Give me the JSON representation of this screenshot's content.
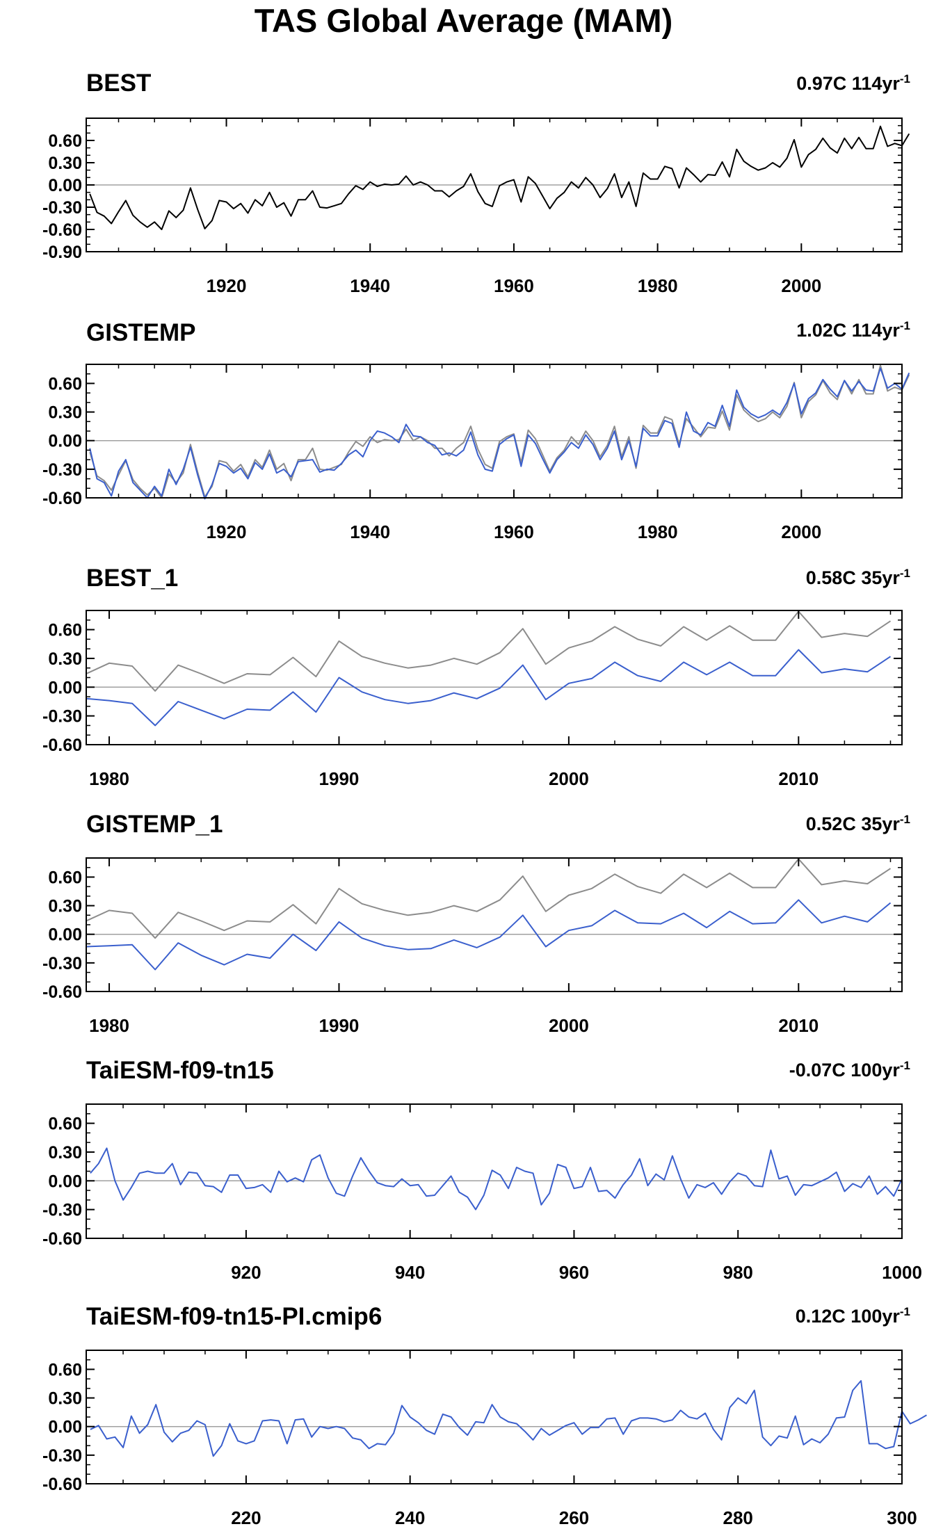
{
  "title": "TAS Global Average (MAM)",
  "colors": {
    "observed": "#000000",
    "reference": "#8c8c8c",
    "model": "#3a5fcd",
    "zero_line": "#a0a0a0"
  },
  "chart_data": [
    {
      "type": "line",
      "title": "BEST",
      "trend_text": "0.97C 114yr",
      "trend_exponent": "-1",
      "ylim": [
        -0.9,
        0.9
      ],
      "yticks": [
        0.6,
        0.3,
        0.0,
        -0.3,
        -0.6,
        -0.9
      ],
      "ytick_labels": [
        "0.60",
        "0.30",
        "0.00",
        "-0.30",
        "-0.60",
        "-0.90"
      ],
      "xlim": [
        1900.5,
        2014
      ],
      "xticks": [
        1920,
        1940,
        1960,
        1980,
        2000
      ],
      "x_start": 1901,
      "series": [
        {
          "color": "observed",
          "values": [
            -0.12,
            -0.37,
            -0.42,
            -0.52,
            -0.36,
            -0.21,
            -0.41,
            -0.5,
            -0.57,
            -0.5,
            -0.6,
            -0.35,
            -0.44,
            -0.34,
            -0.04,
            -0.33,
            -0.59,
            -0.48,
            -0.21,
            -0.23,
            -0.32,
            -0.25,
            -0.38,
            -0.2,
            -0.28,
            -0.1,
            -0.3,
            -0.24,
            -0.42,
            -0.2,
            -0.2,
            -0.08,
            -0.3,
            -0.31,
            -0.28,
            -0.25,
            -0.12,
            -0.01,
            -0.06,
            0.04,
            -0.02,
            0.01,
            0.0,
            0.01,
            0.12,
            0.0,
            0.04,
            0.0,
            -0.08,
            -0.08,
            -0.16,
            -0.08,
            -0.02,
            0.15,
            -0.09,
            -0.25,
            -0.29,
            -0.01,
            0.04,
            0.07,
            -0.23,
            0.11,
            0.02,
            -0.15,
            -0.32,
            -0.18,
            -0.1,
            0.04,
            -0.04,
            0.1,
            0.0,
            -0.17,
            -0.05,
            0.15,
            -0.17,
            0.04,
            -0.29,
            0.16,
            0.08,
            0.08,
            0.25,
            0.22,
            -0.04,
            0.23,
            0.14,
            0.04,
            0.14,
            0.13,
            0.31,
            0.11,
            0.48,
            0.32,
            0.25,
            0.2,
            0.23,
            0.3,
            0.24,
            0.36,
            0.61,
            0.24,
            0.41,
            0.48,
            0.63,
            0.5,
            0.43,
            0.63,
            0.49,
            0.64,
            0.49,
            0.49,
            0.79,
            0.52,
            0.56,
            0.53,
            0.69
          ]
        }
      ]
    },
    {
      "type": "line",
      "title": "GISTEMP",
      "trend_text": "1.02C 114yr",
      "trend_exponent": "-1",
      "ylim": [
        -0.6,
        0.8
      ],
      "yticks": [
        0.6,
        0.3,
        0.0,
        -0.3,
        -0.6
      ],
      "ytick_labels": [
        "0.60",
        "0.30",
        "0.00",
        "-0.30",
        "-0.60"
      ],
      "xlim": [
        1900.5,
        2014
      ],
      "xticks": [
        1920,
        1940,
        1960,
        1980,
        2000
      ],
      "x_start": 1901,
      "series": [
        {
          "color": "reference",
          "values": [
            -0.12,
            -0.37,
            -0.42,
            -0.52,
            -0.36,
            -0.21,
            -0.41,
            -0.5,
            -0.57,
            -0.5,
            -0.6,
            -0.35,
            -0.44,
            -0.34,
            -0.04,
            -0.33,
            -0.59,
            -0.48,
            -0.21,
            -0.23,
            -0.32,
            -0.25,
            -0.38,
            -0.2,
            -0.28,
            -0.1,
            -0.3,
            -0.24,
            -0.42,
            -0.2,
            -0.2,
            -0.08,
            -0.3,
            -0.31,
            -0.28,
            -0.25,
            -0.12,
            -0.01,
            -0.06,
            0.04,
            -0.02,
            0.01,
            0.0,
            0.01,
            0.12,
            0.0,
            0.04,
            0.0,
            -0.08,
            -0.08,
            -0.16,
            -0.08,
            -0.02,
            0.15,
            -0.09,
            -0.25,
            -0.29,
            -0.01,
            0.04,
            0.07,
            -0.23,
            0.11,
            0.02,
            -0.15,
            -0.32,
            -0.18,
            -0.1,
            0.04,
            -0.04,
            0.1,
            0.0,
            -0.17,
            -0.05,
            0.15,
            -0.17,
            0.04,
            -0.29,
            0.16,
            0.08,
            0.08,
            0.25,
            0.22,
            -0.04,
            0.23,
            0.14,
            0.04,
            0.14,
            0.13,
            0.31,
            0.11,
            0.48,
            0.32,
            0.25,
            0.2,
            0.23,
            0.3,
            0.24,
            0.36,
            0.61,
            0.24,
            0.41,
            0.48,
            0.63,
            0.5,
            0.43,
            0.63,
            0.49,
            0.64,
            0.49,
            0.49,
            0.79,
            0.52,
            0.56,
            0.53,
            0.69
          ]
        },
        {
          "color": "model",
          "values": [
            -0.08,
            -0.4,
            -0.44,
            -0.58,
            -0.32,
            -0.2,
            -0.44,
            -0.52,
            -0.6,
            -0.48,
            -0.58,
            -0.3,
            -0.46,
            -0.3,
            -0.07,
            -0.36,
            -0.61,
            -0.46,
            -0.24,
            -0.27,
            -0.34,
            -0.29,
            -0.4,
            -0.23,
            -0.3,
            -0.14,
            -0.34,
            -0.3,
            -0.38,
            -0.22,
            -0.21,
            -0.2,
            -0.33,
            -0.3,
            -0.31,
            -0.24,
            -0.15,
            -0.1,
            -0.17,
            0.0,
            0.1,
            0.08,
            0.04,
            -0.02,
            0.17,
            0.05,
            0.04,
            -0.02,
            -0.05,
            -0.15,
            -0.13,
            -0.16,
            -0.1,
            0.09,
            -0.15,
            -0.3,
            -0.32,
            -0.04,
            0.02,
            0.06,
            -0.27,
            0.06,
            -0.03,
            -0.19,
            -0.34,
            -0.2,
            -0.12,
            -0.02,
            -0.08,
            0.06,
            -0.04,
            -0.2,
            -0.08,
            0.1,
            -0.2,
            0.0,
            -0.27,
            0.13,
            0.05,
            0.05,
            0.21,
            0.18,
            -0.07,
            0.3,
            0.1,
            0.06,
            0.19,
            0.15,
            0.37,
            0.15,
            0.53,
            0.35,
            0.28,
            0.24,
            0.27,
            0.32,
            0.27,
            0.4,
            0.6,
            0.28,
            0.44,
            0.5,
            0.64,
            0.54,
            0.46,
            0.63,
            0.52,
            0.62,
            0.53,
            0.52,
            0.76,
            0.55,
            0.6,
            0.54,
            0.71
          ]
        }
      ]
    },
    {
      "type": "line",
      "title": "BEST_1",
      "trend_text": "0.58C 35yr",
      "trend_exponent": "-1",
      "ylim": [
        -0.6,
        0.8
      ],
      "yticks": [
        0.6,
        0.3,
        0.0,
        -0.3,
        -0.6
      ],
      "ytick_labels": [
        "0.60",
        "0.30",
        "0.00",
        "-0.30",
        "-0.60"
      ],
      "xlim": [
        1979,
        2014.5
      ],
      "xticks": [
        1980,
        1990,
        2000,
        2010
      ],
      "x_start": 1979,
      "series": [
        {
          "color": "reference",
          "values": [
            0.14,
            0.25,
            0.22,
            -0.04,
            0.23,
            0.14,
            0.04,
            0.14,
            0.13,
            0.31,
            0.11,
            0.48,
            0.32,
            0.25,
            0.2,
            0.23,
            0.3,
            0.24,
            0.36,
            0.61,
            0.24,
            0.41,
            0.48,
            0.63,
            0.5,
            0.43,
            0.63,
            0.49,
            0.64,
            0.49,
            0.49,
            0.79,
            0.52,
            0.56,
            0.53,
            0.69
          ]
        },
        {
          "color": "model",
          "values": [
            -0.12,
            -0.14,
            -0.17,
            -0.4,
            -0.15,
            -0.24,
            -0.33,
            -0.23,
            -0.24,
            -0.05,
            -0.26,
            0.1,
            -0.05,
            -0.13,
            -0.17,
            -0.14,
            -0.06,
            -0.12,
            -0.01,
            0.23,
            -0.13,
            0.04,
            0.09,
            0.26,
            0.12,
            0.06,
            0.26,
            0.13,
            0.26,
            0.12,
            0.12,
            0.39,
            0.15,
            0.19,
            0.16,
            0.32
          ]
        }
      ]
    },
    {
      "type": "line",
      "title": "GISTEMP_1",
      "trend_text": "0.52C 35yr",
      "trend_exponent": "-1",
      "ylim": [
        -0.6,
        0.8
      ],
      "yticks": [
        0.6,
        0.3,
        0.0,
        -0.3,
        -0.6
      ],
      "ytick_labels": [
        "0.60",
        "0.30",
        "0.00",
        "-0.30",
        "-0.60"
      ],
      "xlim": [
        1979,
        2014.5
      ],
      "xticks": [
        1980,
        1990,
        2000,
        2010
      ],
      "x_start": 1979,
      "series": [
        {
          "color": "reference",
          "values": [
            0.14,
            0.25,
            0.22,
            -0.04,
            0.23,
            0.14,
            0.04,
            0.14,
            0.13,
            0.31,
            0.11,
            0.48,
            0.32,
            0.25,
            0.2,
            0.23,
            0.3,
            0.24,
            0.36,
            0.61,
            0.24,
            0.41,
            0.48,
            0.63,
            0.5,
            0.43,
            0.63,
            0.49,
            0.64,
            0.49,
            0.49,
            0.79,
            0.52,
            0.56,
            0.53,
            0.69
          ]
        },
        {
          "color": "model",
          "values": [
            -0.13,
            -0.12,
            -0.11,
            -0.37,
            -0.09,
            -0.22,
            -0.32,
            -0.21,
            -0.25,
            0.0,
            -0.17,
            0.13,
            -0.04,
            -0.12,
            -0.16,
            -0.15,
            -0.06,
            -0.14,
            -0.03,
            0.2,
            -0.13,
            0.04,
            0.09,
            0.25,
            0.12,
            0.11,
            0.22,
            0.07,
            0.24,
            0.11,
            0.12,
            0.36,
            0.12,
            0.19,
            0.13,
            0.33
          ]
        }
      ]
    },
    {
      "type": "line",
      "title": "TaiESM-f09-tn15",
      "trend_text": "-0.07C 100yr",
      "trend_exponent": "-1",
      "ylim": [
        -0.6,
        0.8
      ],
      "yticks": [
        0.6,
        0.3,
        0.0,
        -0.3,
        -0.6
      ],
      "ytick_labels": [
        "0.60",
        "0.30",
        "0.00",
        "-0.30",
        "-0.60"
      ],
      "xlim": [
        900.5,
        1000
      ],
      "xticks": [
        920,
        940,
        960,
        980,
        1000
      ],
      "x_start": 901,
      "series": [
        {
          "color": "model",
          "values": [
            0.08,
            0.18,
            0.34,
            0.0,
            -0.2,
            -0.07,
            0.08,
            0.1,
            0.08,
            0.08,
            0.18,
            -0.04,
            0.09,
            0.08,
            -0.05,
            -0.06,
            -0.12,
            0.06,
            0.06,
            -0.08,
            -0.07,
            -0.04,
            -0.12,
            0.1,
            -0.01,
            0.03,
            -0.01,
            0.22,
            0.27,
            0.03,
            -0.13,
            -0.16,
            0.05,
            0.24,
            0.1,
            -0.02,
            -0.05,
            -0.06,
            0.02,
            -0.05,
            -0.04,
            -0.16,
            -0.15,
            -0.05,
            0.05,
            -0.12,
            -0.17,
            -0.3,
            -0.15,
            0.11,
            0.06,
            -0.08,
            0.14,
            0.1,
            0.08,
            -0.25,
            -0.13,
            0.17,
            0.14,
            -0.08,
            -0.06,
            0.14,
            -0.11,
            -0.1,
            -0.18,
            -0.04,
            0.06,
            0.23,
            -0.05,
            0.07,
            0.01,
            0.26,
            0.02,
            -0.18,
            -0.04,
            -0.07,
            -0.02,
            -0.14,
            -0.01,
            0.08,
            0.05,
            -0.05,
            -0.06,
            0.32,
            0.02,
            0.05,
            -0.15,
            -0.04,
            -0.05,
            -0.01,
            0.03,
            0.09,
            -0.11,
            -0.03,
            -0.07,
            0.05,
            -0.14,
            -0.06,
            -0.16,
            0.02
          ]
        }
      ]
    },
    {
      "type": "line",
      "title": "TaiESM-f09-tn15-PI.cmip6",
      "trend_text": "0.12C 100yr",
      "trend_exponent": "-1",
      "ylim": [
        -0.6,
        0.8
      ],
      "yticks": [
        0.6,
        0.3,
        0.0,
        -0.3,
        -0.6
      ],
      "ytick_labels": [
        "0.60",
        "0.30",
        "0.00",
        "-0.30",
        "-0.60"
      ],
      "xlim": [
        200.5,
        300
      ],
      "xticks": [
        220,
        240,
        260,
        280,
        300
      ],
      "x_start": 201,
      "series": [
        {
          "color": "model",
          "values": [
            -0.03,
            0.01,
            -0.13,
            -0.11,
            -0.22,
            0.11,
            -0.07,
            0.02,
            0.23,
            -0.06,
            -0.16,
            -0.07,
            -0.04,
            0.06,
            0.02,
            -0.31,
            -0.2,
            0.03,
            -0.15,
            -0.18,
            -0.15,
            0.06,
            0.07,
            0.06,
            -0.18,
            0.07,
            0.08,
            -0.11,
            0.0,
            -0.02,
            0.0,
            -0.02,
            -0.12,
            -0.14,
            -0.23,
            -0.18,
            -0.19,
            -0.07,
            0.22,
            0.1,
            0.04,
            -0.04,
            -0.08,
            0.13,
            0.1,
            -0.01,
            -0.09,
            0.05,
            0.04,
            0.23,
            0.1,
            0.05,
            0.03,
            -0.05,
            -0.14,
            -0.02,
            -0.09,
            -0.04,
            0.01,
            0.04,
            -0.08,
            -0.01,
            -0.01,
            0.08,
            0.09,
            -0.08,
            0.06,
            0.09,
            0.09,
            0.08,
            0.05,
            0.07,
            0.17,
            0.1,
            0.08,
            0.14,
            -0.03,
            -0.14,
            0.2,
            0.3,
            0.24,
            0.38,
            -0.11,
            -0.2,
            -0.1,
            -0.12,
            0.11,
            -0.19,
            -0.13,
            -0.17,
            -0.08,
            0.09,
            0.1,
            0.38,
            0.48,
            -0.18,
            -0.18,
            -0.23,
            -0.21,
            0.16,
            0.03,
            0.07,
            0.12
          ]
        }
      ]
    }
  ]
}
